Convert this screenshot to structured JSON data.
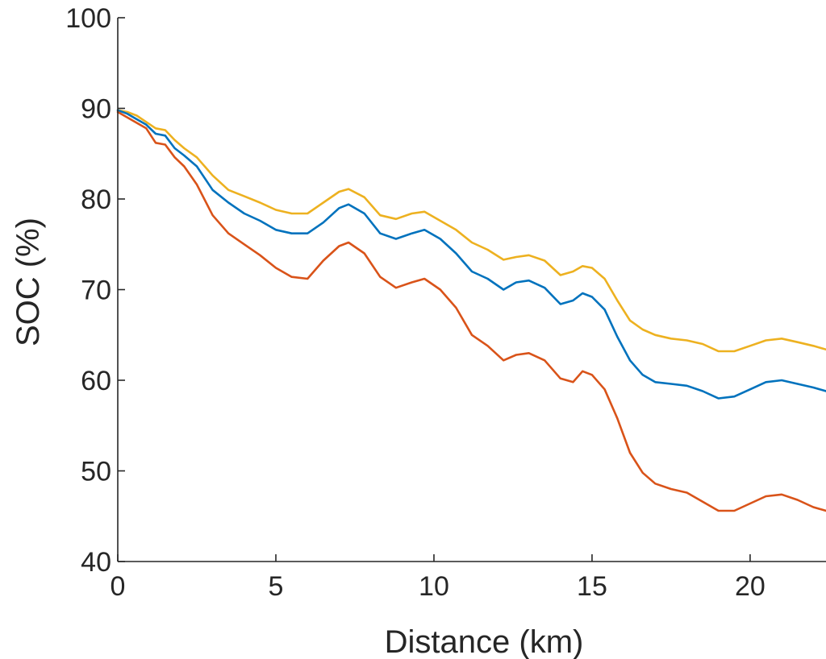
{
  "chart_data": {
    "type": "line",
    "title": "",
    "xlabel": "Distance (km)",
    "ylabel": "SOC (%)",
    "xlim": [
      0,
      22.4
    ],
    "ylim": [
      40,
      100
    ],
    "xticks": [
      0,
      5,
      10,
      15,
      20
    ],
    "xtick_labels": [
      "0",
      "5",
      "10",
      "15",
      "20"
    ],
    "yticks": [
      40,
      50,
      60,
      70,
      80,
      90,
      100
    ],
    "ytick_labels": [
      "40",
      "50",
      "60",
      "70",
      "80",
      "90",
      "100"
    ],
    "grid": false,
    "legend": "none",
    "series": [
      {
        "color": "#EDB120",
        "x": [
          0,
          0.3,
          0.6,
          0.9,
          1.2,
          1.5,
          1.8,
          2.1,
          2.5,
          3.0,
          3.5,
          4.0,
          4.5,
          5.0,
          5.5,
          6.0,
          6.5,
          7.0,
          7.3,
          7.8,
          8.3,
          8.8,
          9.3,
          9.7,
          10.2,
          10.7,
          11.2,
          11.7,
          12.2,
          12.6,
          13.0,
          13.5,
          14.0,
          14.4,
          14.7,
          15.0,
          15.4,
          15.8,
          16.2,
          16.6,
          17.0,
          17.5,
          18.0,
          18.5,
          19.0,
          19.5,
          20.0,
          20.5,
          21.0,
          21.5,
          22.0,
          22.4
        ],
        "y": [
          89.8,
          89.6,
          89.2,
          88.5,
          87.8,
          87.6,
          86.5,
          85.6,
          84.6,
          82.6,
          81.0,
          80.3,
          79.6,
          78.8,
          78.4,
          78.4,
          79.6,
          80.8,
          81.1,
          80.2,
          78.2,
          77.8,
          78.4,
          78.6,
          77.6,
          76.6,
          75.2,
          74.4,
          73.3,
          73.6,
          73.8,
          73.2,
          71.6,
          72.0,
          72.6,
          72.4,
          71.2,
          68.8,
          66.6,
          65.6,
          65.0,
          64.6,
          64.4,
          64.0,
          63.2,
          63.2,
          63.8,
          64.4,
          64.6,
          64.2,
          63.8,
          63.4
        ]
      },
      {
        "color": "#0072BD",
        "x": [
          0,
          0.3,
          0.6,
          0.9,
          1.2,
          1.5,
          1.8,
          2.1,
          2.5,
          3.0,
          3.5,
          4.0,
          4.5,
          5.0,
          5.5,
          6.0,
          6.5,
          7.0,
          7.3,
          7.8,
          8.3,
          8.8,
          9.3,
          9.7,
          10.2,
          10.7,
          11.2,
          11.7,
          12.2,
          12.6,
          13.0,
          13.5,
          14.0,
          14.4,
          14.7,
          15.0,
          15.4,
          15.8,
          16.2,
          16.6,
          17.0,
          17.5,
          18.0,
          18.5,
          19.0,
          19.5,
          20.0,
          20.5,
          21.0,
          21.5,
          22.0,
          22.4
        ],
        "y": [
          89.8,
          89.4,
          88.8,
          88.2,
          87.2,
          87.0,
          85.6,
          84.8,
          83.6,
          81.0,
          79.6,
          78.4,
          77.6,
          76.6,
          76.2,
          76.2,
          77.4,
          79.0,
          79.4,
          78.4,
          76.2,
          75.6,
          76.2,
          76.6,
          75.6,
          74.0,
          72.0,
          71.2,
          70.0,
          70.8,
          71.0,
          70.2,
          68.4,
          68.8,
          69.6,
          69.2,
          67.8,
          64.8,
          62.2,
          60.6,
          59.8,
          59.6,
          59.4,
          58.8,
          58.0,
          58.2,
          59.0,
          59.8,
          60.0,
          59.6,
          59.2,
          58.8
        ]
      },
      {
        "color": "#D95319",
        "x": [
          0,
          0.3,
          0.6,
          0.9,
          1.2,
          1.5,
          1.8,
          2.1,
          2.5,
          3.0,
          3.5,
          4.0,
          4.5,
          5.0,
          5.5,
          6.0,
          6.5,
          7.0,
          7.3,
          7.8,
          8.3,
          8.8,
          9.3,
          9.7,
          10.2,
          10.7,
          11.2,
          11.7,
          12.2,
          12.6,
          13.0,
          13.5,
          14.0,
          14.4,
          14.7,
          15.0,
          15.4,
          15.8,
          16.2,
          16.6,
          17.0,
          17.5,
          18.0,
          18.5,
          19.0,
          19.5,
          20.0,
          20.5,
          21.0,
          21.5,
          22.0,
          22.4
        ],
        "y": [
          89.6,
          89.0,
          88.4,
          87.8,
          86.2,
          86.0,
          84.6,
          83.6,
          81.6,
          78.2,
          76.2,
          75.0,
          73.8,
          72.4,
          71.4,
          71.2,
          73.2,
          74.8,
          75.2,
          74.0,
          71.4,
          70.2,
          70.8,
          71.2,
          70.0,
          68.0,
          65.0,
          63.8,
          62.2,
          62.8,
          63.0,
          62.2,
          60.2,
          59.8,
          61.0,
          60.6,
          59.0,
          55.8,
          52.0,
          49.8,
          48.6,
          48.0,
          47.6,
          46.6,
          45.6,
          45.6,
          46.4,
          47.2,
          47.4,
          46.8,
          46.0,
          45.6
        ]
      }
    ]
  }
}
